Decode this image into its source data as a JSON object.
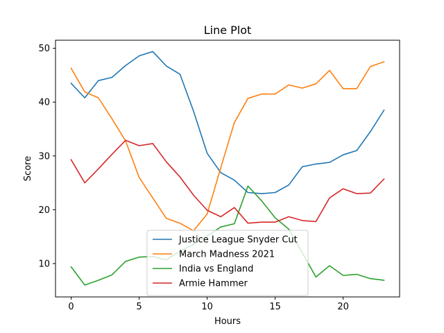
{
  "chart_data": {
    "type": "line",
    "title": "Line Plot",
    "xlabel": "Hours",
    "ylabel": "Score",
    "xlim": [
      -1.15,
      24.15
    ],
    "ylim": [
      3.8,
      51.5
    ],
    "xticks": [
      0,
      5,
      10,
      15,
      20
    ],
    "yticks": [
      10,
      20,
      30,
      40,
      50
    ],
    "grid": false,
    "legend_position": "lower center",
    "x": [
      0,
      1,
      2,
      3,
      4,
      5,
      6,
      7,
      8,
      9,
      10,
      11,
      12,
      13,
      14,
      15,
      16,
      17,
      18,
      19,
      20,
      21,
      22,
      23
    ],
    "series": [
      {
        "name": "Justice League Snyder Cut",
        "color": "#1f77b4",
        "values": [
          43.5,
          40.8,
          44.0,
          44.6,
          46.8,
          48.6,
          49.4,
          46.7,
          45.2,
          38.3,
          30.5,
          26.9,
          25.5,
          23.2,
          23.0,
          23.2,
          24.6,
          28.0,
          28.5,
          28.8,
          30.2,
          31.0,
          34.5,
          38.5
        ]
      },
      {
        "name": "March Madness 2021",
        "color": "#ff7f0e",
        "values": [
          46.3,
          41.9,
          40.8,
          36.9,
          32.8,
          26.0,
          22.2,
          18.4,
          17.5,
          16.1,
          19.2,
          27.8,
          36.2,
          40.7,
          41.5,
          41.5,
          43.2,
          42.6,
          43.4,
          45.9,
          42.5,
          42.5,
          46.6,
          47.5
        ]
      },
      {
        "name": "India vs England",
        "color": "#2ca02c",
        "values": [
          9.4,
          6.0,
          6.9,
          7.9,
          10.4,
          11.2,
          11.3,
          10.7,
          12.3,
          13.6,
          15.1,
          16.8,
          17.4,
          24.4,
          21.7,
          18.5,
          16.4,
          12.0,
          7.5,
          9.6,
          7.8,
          8.0,
          7.2,
          6.9
        ]
      },
      {
        "name": "Armie Hammer",
        "color": "#d62728",
        "values": [
          29.3,
          25.0,
          27.6,
          30.3,
          32.9,
          31.9,
          32.3,
          28.9,
          26.1,
          22.7,
          19.9,
          18.7,
          20.4,
          17.5,
          17.7,
          17.7,
          18.7,
          18.0,
          17.8,
          22.2,
          23.9,
          23.0,
          23.1,
          25.7
        ]
      }
    ]
  }
}
